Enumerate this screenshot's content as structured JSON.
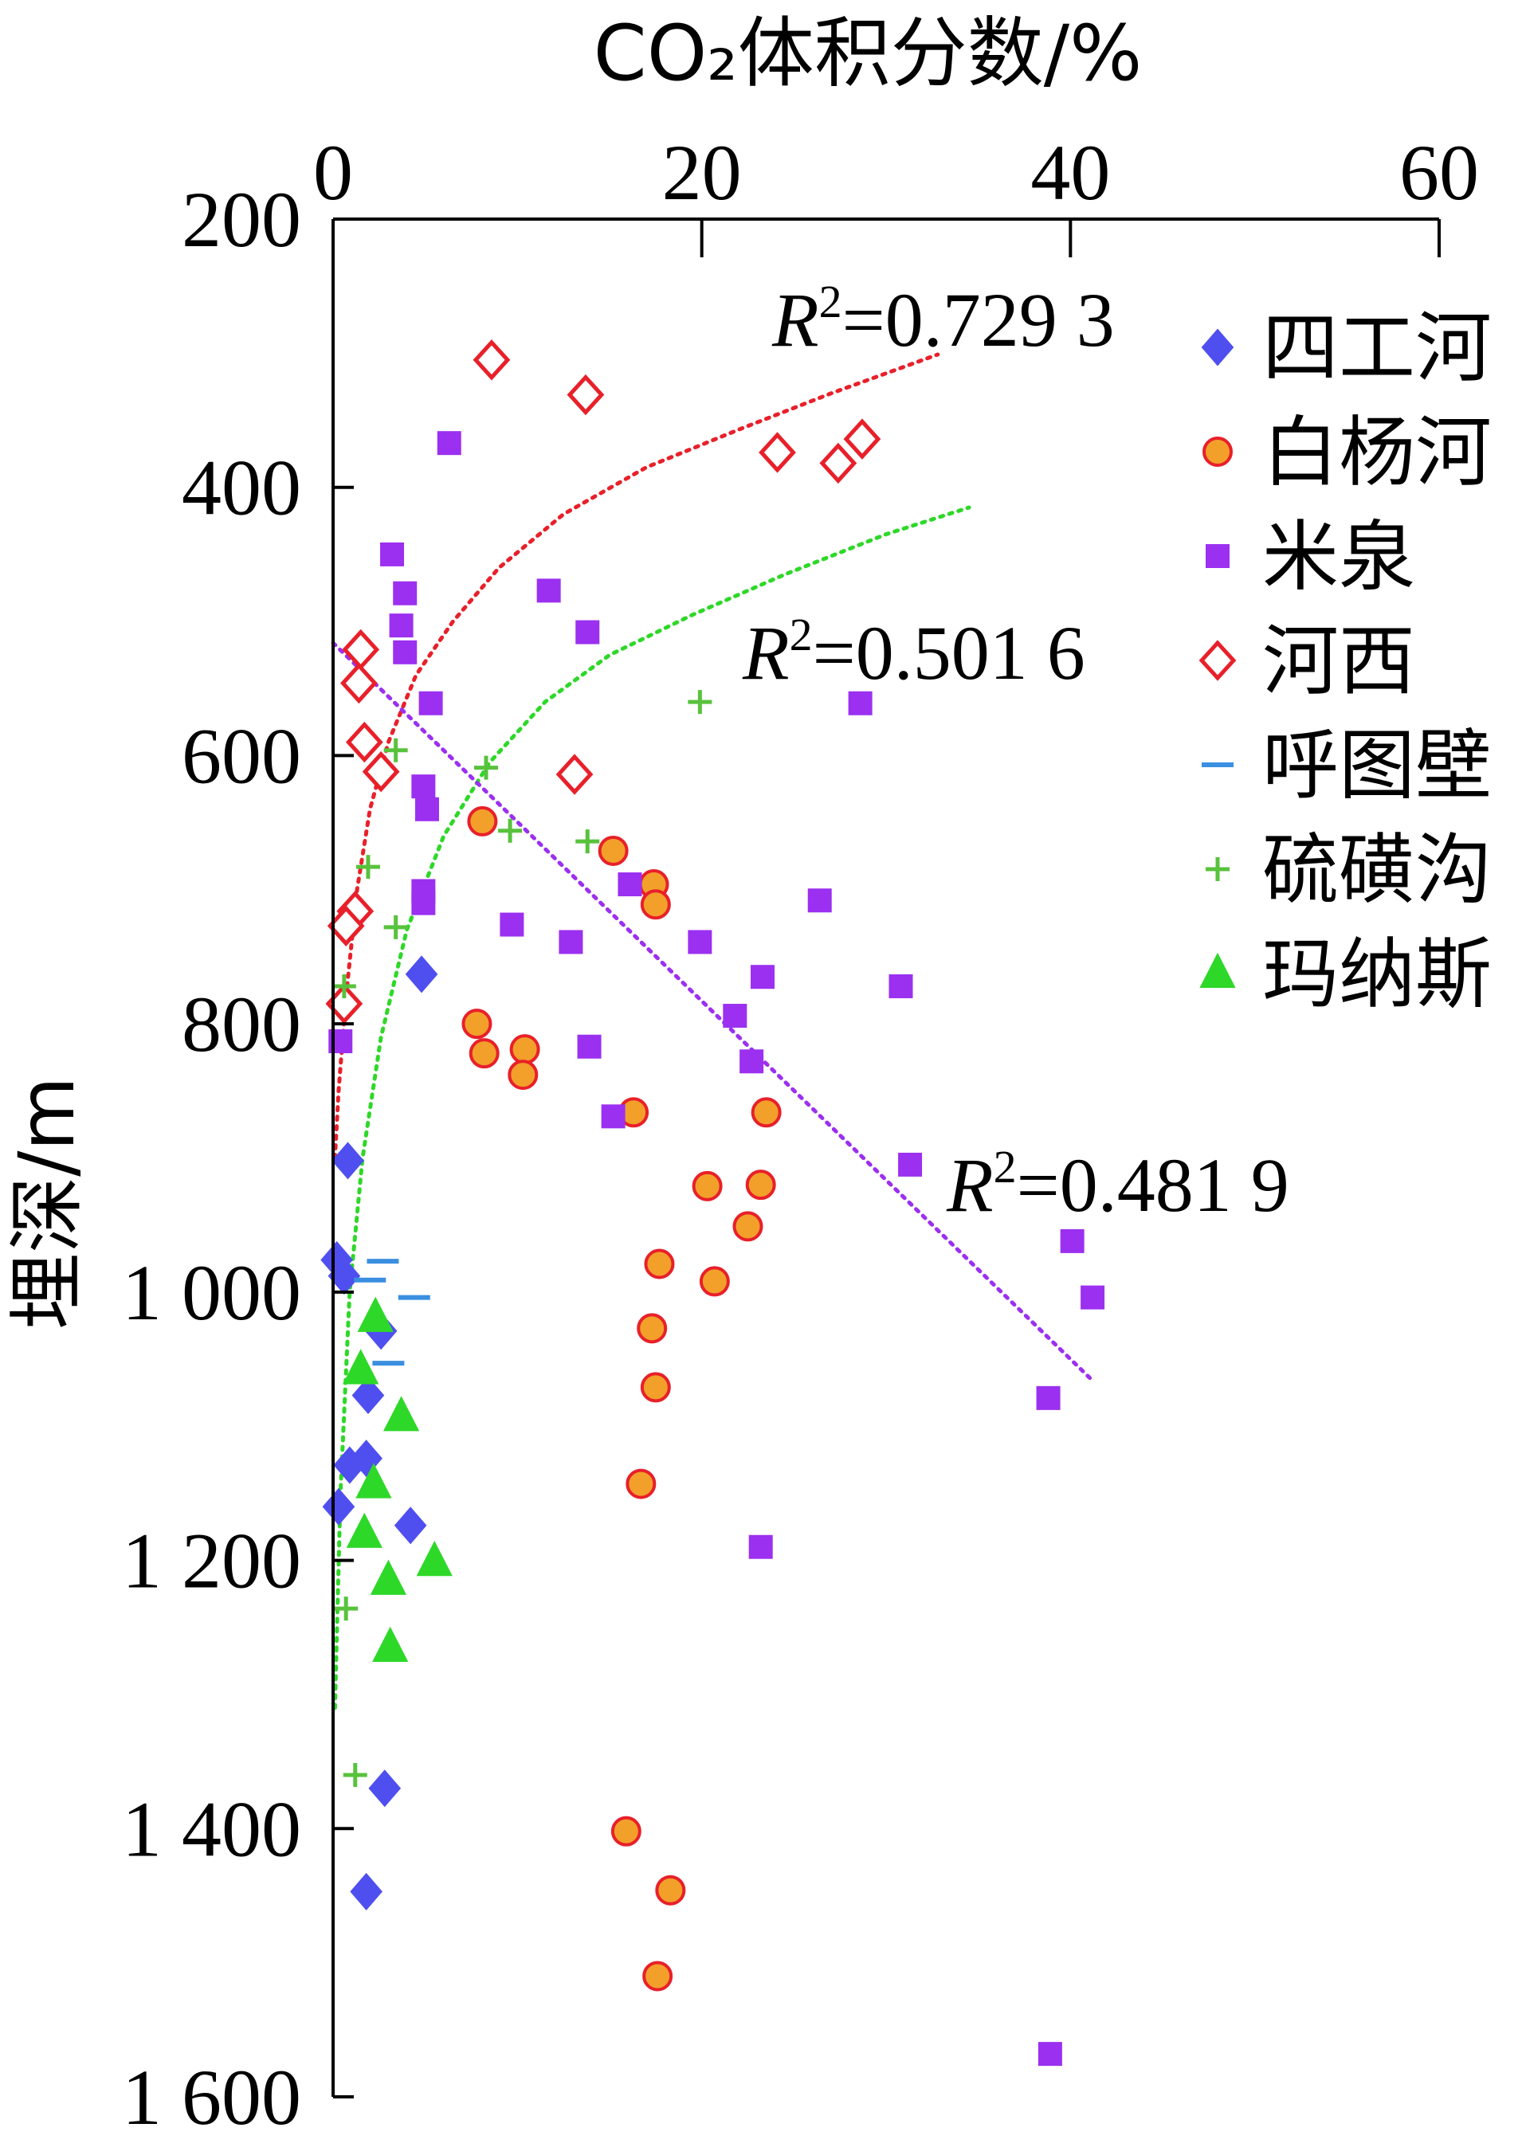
{
  "chart_data": {
    "type": "scatter",
    "title": "",
    "xlabel": "CO₂体积分数/%",
    "ylabel": "埋深/m",
    "xlim": [
      0,
      60
    ],
    "ylim": [
      200,
      1600
    ],
    "x_axis_position": "top",
    "y_inverted": true,
    "x_ticks": [
      "0",
      "20",
      "40",
      "60"
    ],
    "y_ticks": [
      "200",
      "400",
      "600",
      "800",
      "1 000",
      "1 200",
      "1 400",
      "1 600"
    ],
    "legend_position": "right",
    "grid": false,
    "series": [
      {
        "name": "四工河",
        "marker": "diamond",
        "color": "#4f4ff0",
        "points": [
          [
            4.8,
            763
          ],
          [
            0.8,
            902
          ],
          [
            0.2,
            976
          ],
          [
            0.6,
            988
          ],
          [
            2.6,
            1029
          ],
          [
            1.9,
            1077
          ],
          [
            0.9,
            1129
          ],
          [
            1.8,
            1124
          ],
          [
            0.3,
            1160
          ],
          [
            4.2,
            1174
          ],
          [
            2.8,
            1370
          ],
          [
            1.8,
            1447
          ]
        ]
      },
      {
        "name": "白杨河",
        "marker": "circle",
        "color": "#f2a02a",
        "edge_color": "#e8202a",
        "points": [
          [
            8.1,
            649
          ],
          [
            15.2,
            671
          ],
          [
            17.4,
            696
          ],
          [
            17.5,
            711
          ],
          [
            7.8,
            800
          ],
          [
            8.2,
            822
          ],
          [
            10.4,
            819
          ],
          [
            10.3,
            838
          ],
          [
            16.3,
            866
          ],
          [
            23.5,
            866
          ],
          [
            20.3,
            921
          ],
          [
            23.2,
            920
          ],
          [
            22.5,
            951
          ],
          [
            17.7,
            979
          ],
          [
            20.7,
            992
          ],
          [
            17.3,
            1027
          ],
          [
            17.5,
            1071
          ],
          [
            16.7,
            1143
          ],
          [
            15.9,
            1402
          ],
          [
            18.3,
            1446
          ],
          [
            17.6,
            1510
          ]
        ]
      },
      {
        "name": "米泉",
        "marker": "square",
        "color": "#9b30f0",
        "points": [
          [
            6.3,
            367
          ],
          [
            3.2,
            450
          ],
          [
            3.9,
            479
          ],
          [
            3.7,
            503
          ],
          [
            3.9,
            523
          ],
          [
            11.7,
            477
          ],
          [
            13.8,
            508
          ],
          [
            5.3,
            561
          ],
          [
            28.6,
            561
          ],
          [
            4.9,
            623
          ],
          [
            5.1,
            640
          ],
          [
            16.1,
            696
          ],
          [
            4.9,
            701
          ],
          [
            4.9,
            710
          ],
          [
            26.4,
            708
          ],
          [
            9.7,
            726
          ],
          [
            12.9,
            739
          ],
          [
            19.9,
            739
          ],
          [
            23.3,
            765
          ],
          [
            30.8,
            772
          ],
          [
            21.8,
            794
          ],
          [
            13.9,
            817
          ],
          [
            22.7,
            828
          ],
          [
            15.2,
            869
          ],
          [
            31.3,
            905
          ],
          [
            40.1,
            962
          ],
          [
            41.2,
            1004
          ],
          [
            38.8,
            1079
          ],
          [
            23.2,
            1190
          ],
          [
            38.9,
            1568
          ],
          [
            0.4,
            813
          ]
        ]
      },
      {
        "name": "河西",
        "marker": "diamond-open",
        "color": "#e8202a",
        "points": [
          [
            8.6,
            305
          ],
          [
            13.7,
            331
          ],
          [
            24.1,
            374
          ],
          [
            27.4,
            382
          ],
          [
            28.7,
            364
          ],
          [
            1.5,
            521
          ],
          [
            1.4,
            546
          ],
          [
            1.7,
            590
          ],
          [
            2.6,
            612
          ],
          [
            13.1,
            614
          ],
          [
            1.2,
            716
          ],
          [
            0.7,
            727
          ],
          [
            0.6,
            785
          ]
        ]
      },
      {
        "name": "呼图壁",
        "marker": "dash",
        "color": "#3a8fe0",
        "points": [
          [
            2.7,
            977
          ],
          [
            2.0,
            991
          ],
          [
            4.4,
            1004
          ],
          [
            3.0,
            1053
          ]
        ]
      },
      {
        "name": "硫磺沟",
        "marker": "plus",
        "color": "#58c23c",
        "points": [
          [
            19.9,
            560
          ],
          [
            3.4,
            596
          ],
          [
            8.3,
            609
          ],
          [
            9.6,
            656
          ],
          [
            13.8,
            664
          ],
          [
            1.9,
            683
          ],
          [
            3.4,
            728
          ],
          [
            0.6,
            772
          ],
          [
            0.7,
            1236
          ],
          [
            1.2,
            1360
          ]
        ]
      },
      {
        "name": "玛纳斯",
        "marker": "triangle",
        "color": "#2ed828",
        "points": [
          [
            2.3,
            1019
          ],
          [
            1.5,
            1058
          ],
          [
            3.7,
            1093
          ],
          [
            2.2,
            1143
          ],
          [
            1.7,
            1180
          ],
          [
            3.0,
            1215
          ],
          [
            5.5,
            1201
          ],
          [
            3.1,
            1265
          ]
        ]
      }
    ],
    "trendlines": [
      {
        "color": "#e8202a",
        "r2_label": "0.729 3",
        "points": [
          [
            0.1,
            900
          ],
          [
            0.3,
            850
          ],
          [
            0.7,
            780
          ],
          [
            1.3,
            700
          ],
          [
            2.0,
            640
          ],
          [
            3.0,
            590
          ],
          [
            4.5,
            540
          ],
          [
            6.5,
            500
          ],
          [
            9.0,
            460
          ],
          [
            12.5,
            420
          ],
          [
            17,
            385
          ],
          [
            22,
            357
          ],
          [
            27,
            330
          ],
          [
            32.8,
            301
          ]
        ]
      },
      {
        "color": "#2ed828",
        "r2_label": "0.501 6",
        "points": [
          [
            0.1,
            1310
          ],
          [
            0.4,
            1150
          ],
          [
            0.9,
            1000
          ],
          [
            1.6,
            900
          ],
          [
            2.6,
            810
          ],
          [
            4.0,
            730
          ],
          [
            6.0,
            660
          ],
          [
            8.5,
            605
          ],
          [
            11.5,
            560
          ],
          [
            15,
            525
          ],
          [
            19.5,
            495
          ],
          [
            24.5,
            465
          ],
          [
            30,
            435
          ],
          [
            34.5,
            415
          ]
        ]
      },
      {
        "color": "#9b30f0",
        "r2_label": "0.481 9",
        "points": [
          [
            0,
            516
          ],
          [
            41.2,
            1066
          ]
        ]
      }
    ]
  }
}
